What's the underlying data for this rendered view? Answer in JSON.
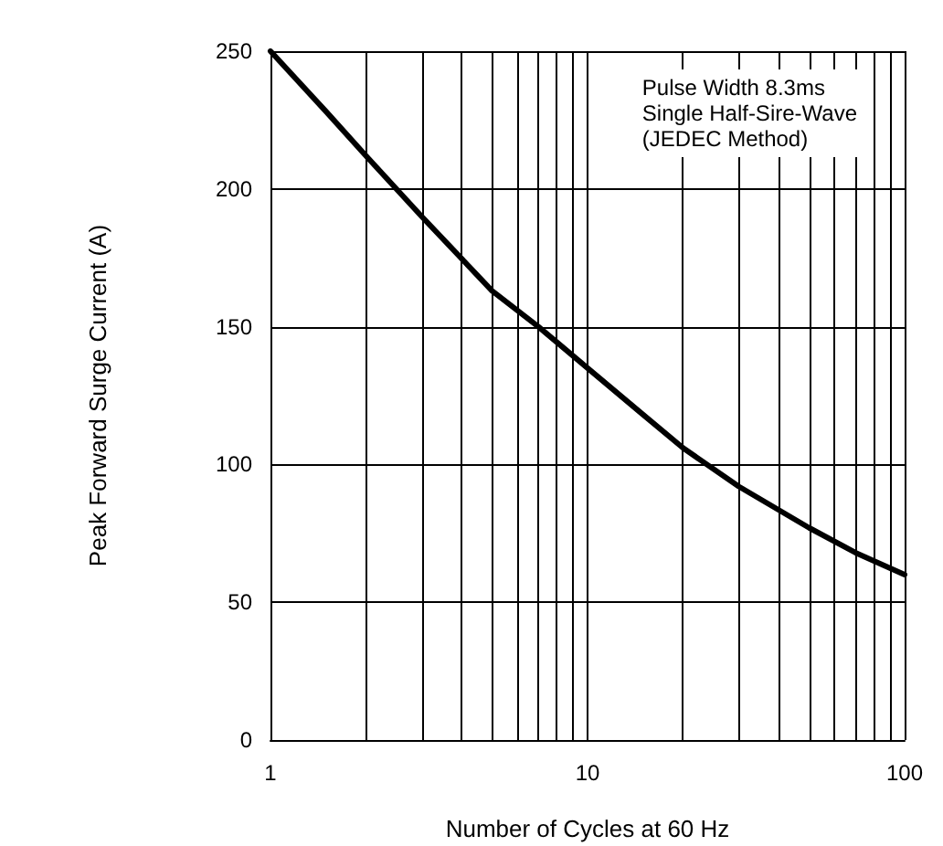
{
  "chart_data": {
    "type": "line",
    "xlabel": "Number of Cycles at 60 Hz",
    "ylabel": "Peak Forward Surge Current (A)",
    "annotations": [
      "Pulse Width 8.3ms\nSingle Half-Sire-Wave\n(JEDEC Method)"
    ],
    "log": "x",
    "xlim": [
      1,
      100
    ],
    "ylim": [
      0,
      250
    ],
    "xticks": [
      1,
      {
        "value": 2,
        "label": null
      },
      {
        "value": 3,
        "label": null
      },
      {
        "value": 4,
        "label": null
      },
      {
        "value": 5,
        "label": null
      },
      {
        "value": 6,
        "label": null
      },
      {
        "value": 7,
        "label": null
      },
      {
        "value": 8,
        "label": null
      },
      {
        "value": 9,
        "label": null
      },
      10,
      {
        "value": 20,
        "label": null
      },
      {
        "value": 30,
        "label": null
      },
      {
        "value": 40,
        "label": null
      },
      {
        "value": 50,
        "label": null
      },
      {
        "value": 60,
        "label": null
      },
      {
        "value": 70,
        "label": null
      },
      {
        "value": 80,
        "label": null
      },
      {
        "value": 90,
        "label": null
      },
      100
    ],
    "yticks": [
      0,
      50,
      100,
      150,
      200,
      250
    ],
    "grid": true,
    "series": [
      {
        "color": "#000000",
        "x": [
          1,
          1.5,
          2,
          3,
          5,
          7,
          10,
          15,
          20,
          30,
          50,
          70,
          100
        ],
        "values": [
          250,
          228,
          212,
          190,
          163,
          150,
          135,
          118,
          106,
          92,
          77,
          68,
          60
        ]
      }
    ]
  }
}
